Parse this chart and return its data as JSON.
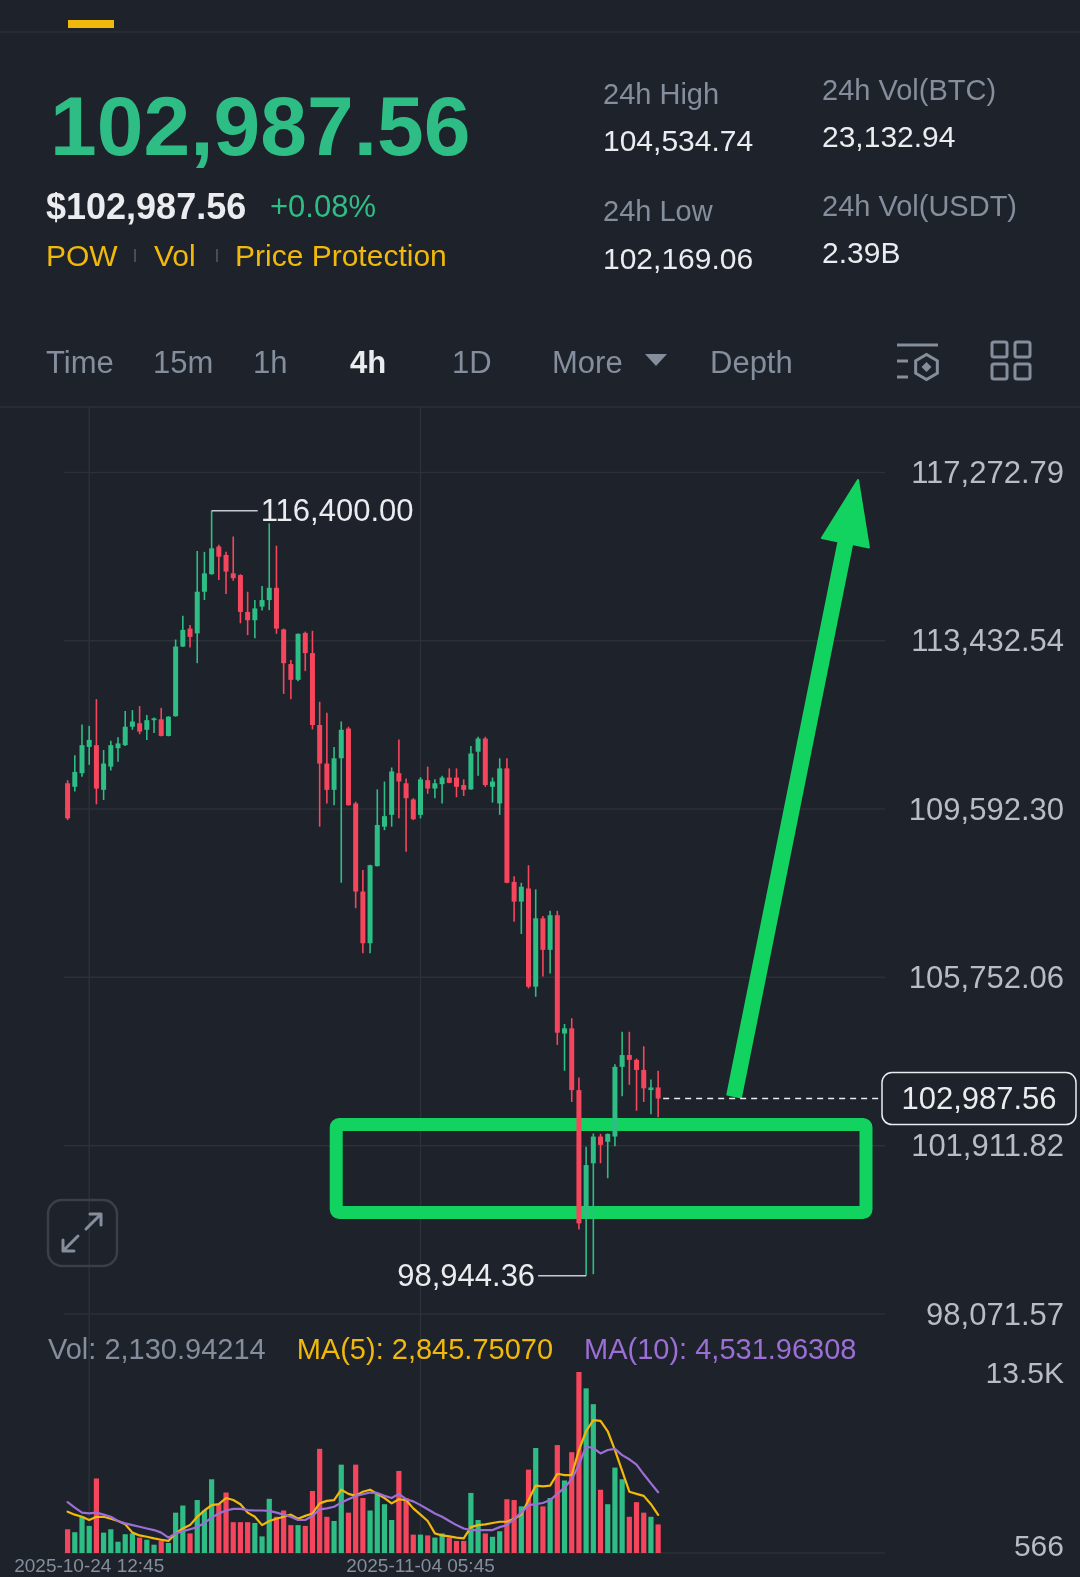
{
  "chart_data": [
    {
      "type": "other",
      "title": "102,987.56",
      "annotations": [
        "$102,987.56",
        "+0.08%",
        "POW",
        "Vol",
        "Price Protection",
        "24h High",
        "104,534.74",
        "24h Low",
        "102,169.06",
        "24h Vol(BTC)",
        "23,132.94",
        "24h Vol(USDT)",
        "2.39B",
        "Time",
        "15m",
        "1h",
        "4h",
        "1D",
        "More",
        "Depth"
      ]
    },
    {
      "type": "candlestick",
      "categories": [
        null,
        null,
        null,
        null,
        null,
        null,
        null,
        null,
        null,
        null,
        null,
        null,
        null,
        null,
        null,
        null,
        null,
        null,
        null,
        null,
        null,
        null,
        null,
        null,
        null,
        null,
        null,
        null,
        null,
        null,
        null,
        null,
        null,
        null,
        null,
        null,
        null,
        null,
        null,
        null,
        null,
        null,
        null,
        null,
        null,
        null,
        null,
        null,
        null,
        null,
        null,
        null,
        null,
        null,
        null,
        null,
        null,
        null,
        null,
        null,
        null,
        null,
        null,
        null,
        null,
        null,
        null,
        null,
        null,
        null,
        null,
        null,
        null,
        null,
        null,
        null,
        null,
        null,
        null,
        null,
        null,
        null,
        null,
        null,
        null,
        null,
        null,
        null,
        null,
        null,
        null,
        null,
        null,
        null,
        null,
        null,
        null,
        null,
        null,
        null,
        null,
        null,
        null,
        null,
        null,
        null,
        null,
        null,
        null,
        null,
        null,
        null,
        null,
        null
      ],
      "ohlc": [
        [
          110180,
          110250,
          109340,
          109380
        ],
        [
          110100,
          110820,
          109990,
          110440
        ],
        [
          110410,
          111520,
          110330,
          111050
        ],
        [
          111010,
          111490,
          110600,
          111170
        ],
        [
          111050,
          112100,
          109700,
          110060
        ],
        [
          110030,
          110940,
          109800,
          110630
        ],
        [
          110560,
          111150,
          110470,
          111050
        ],
        [
          110980,
          111230,
          110670,
          111090
        ],
        [
          111050,
          111830,
          111030,
          111470
        ],
        [
          111470,
          111850,
          111400,
          111590
        ],
        [
          111550,
          111940,
          111300,
          111360
        ],
        [
          111400,
          111740,
          111170,
          111620
        ],
        [
          111620,
          111680,
          111330,
          111660
        ],
        [
          111640,
          111900,
          111250,
          111260
        ],
        [
          111260,
          111710,
          111250,
          111700
        ],
        [
          111710,
          113460,
          111700,
          113300
        ],
        [
          113300,
          114000,
          113290,
          113680
        ],
        [
          113710,
          113790,
          113280,
          113520
        ],
        [
          113600,
          115480,
          112920,
          114550
        ],
        [
          114550,
          115460,
          114360,
          114970
        ],
        [
          114950,
          116400,
          114940,
          115540
        ],
        [
          115580,
          115620,
          114820,
          115350
        ],
        [
          115390,
          115460,
          114500,
          115010
        ],
        [
          114970,
          115810,
          114800,
          114860
        ],
        [
          114930,
          114950,
          113830,
          114090
        ],
        [
          114090,
          114550,
          113560,
          113900
        ],
        [
          113900,
          114360,
          113490,
          114170
        ],
        [
          114210,
          114680,
          114120,
          114360
        ],
        [
          114360,
          116110,
          114130,
          114640
        ],
        [
          114640,
          115600,
          113590,
          113710
        ],
        [
          113690,
          113710,
          112220,
          112920
        ],
        [
          112900,
          112990,
          112100,
          112540
        ],
        [
          112540,
          113600,
          112510,
          113590
        ],
        [
          113610,
          113640,
          112740,
          113150
        ],
        [
          113150,
          113660,
          111410,
          111510
        ],
        [
          111510,
          112040,
          109190,
          110630
        ],
        [
          110630,
          111790,
          109720,
          110030
        ],
        [
          110030,
          111010,
          109680,
          110750
        ],
        [
          110750,
          111590,
          107910,
          111400
        ],
        [
          111430,
          111470,
          109670,
          109680
        ],
        [
          109720,
          109760,
          107330,
          107710
        ],
        [
          107710,
          108200,
          106300,
          106530
        ],
        [
          106530,
          108320,
          106300,
          108310
        ],
        [
          108290,
          110040,
          108280,
          109230
        ],
        [
          109190,
          110220,
          109110,
          109430
        ],
        [
          109460,
          110540,
          109190,
          110450
        ],
        [
          110410,
          111180,
          109380,
          110220
        ],
        [
          110180,
          110290,
          108620,
          109840
        ],
        [
          109810,
          109840,
          109340,
          109360
        ],
        [
          109460,
          110320,
          109380,
          110270
        ],
        [
          110250,
          110560,
          109940,
          110060
        ],
        [
          110060,
          110270,
          109840,
          110180
        ],
        [
          110160,
          110350,
          109720,
          110310
        ],
        [
          110310,
          110520,
          110180,
          110190
        ],
        [
          110310,
          110520,
          109860,
          110100
        ],
        [
          110140,
          110270,
          109890,
          110030
        ],
        [
          110040,
          111030,
          110030,
          110860
        ],
        [
          110900,
          111240,
          110350,
          111200
        ],
        [
          111200,
          111240,
          110100,
          110140
        ],
        [
          110100,
          110310,
          109740,
          110220
        ],
        [
          109720,
          110750,
          109460,
          110520
        ],
        [
          110520,
          110750,
          107900,
          107910
        ],
        [
          107930,
          108060,
          107020,
          107480
        ],
        [
          107480,
          107910,
          106740,
          107820
        ],
        [
          107780,
          108310,
          105500,
          105540
        ],
        [
          105540,
          107760,
          105310,
          107100
        ],
        [
          107100,
          107150,
          105770,
          106380
        ],
        [
          106380,
          107270,
          105840,
          107170
        ],
        [
          107170,
          107270,
          104210,
          104490
        ],
        [
          104470,
          104690,
          103620,
          104590
        ],
        [
          104590,
          104820,
          102910,
          103180
        ],
        [
          103180,
          103470,
          100000,
          100140
        ],
        [
          100300,
          101890,
          98944.36,
          101470
        ],
        [
          101510,
          102190,
          98980,
          102120
        ],
        [
          102120,
          102180,
          101510,
          101930
        ],
        [
          102000,
          102190,
          101170,
          102180
        ],
        [
          102120,
          103770,
          101900,
          103710
        ],
        [
          103710,
          104510,
          103040,
          103980
        ],
        [
          103980,
          104510,
          103300,
          103870
        ],
        [
          103870,
          103900,
          102710,
          103640
        ],
        [
          103640,
          104180,
          102910,
          103220
        ],
        [
          103180,
          103420,
          102630,
          103240
        ],
        [
          103240,
          103620,
          102560,
          102987.56
        ],
        null,
        null,
        null,
        null,
        null,
        null,
        null,
        null,
        null,
        null,
        null,
        null,
        null,
        null,
        null,
        null,
        null,
        null,
        null,
        null,
        null,
        null,
        null,
        null,
        null,
        null,
        null,
        null,
        null,
        null,
        null
      ],
      "colors": [
        "#f6465d",
        "#2ebd85",
        "#2ebd85",
        "#2ebd85",
        "#f6465d",
        "#2ebd85",
        "#2ebd85",
        "#2ebd85",
        "#2ebd85",
        "#2ebd85",
        "#f6465d",
        "#2ebd85",
        "#2ebd85",
        "#f6465d",
        "#2ebd85",
        "#2ebd85",
        "#2ebd85",
        "#f6465d",
        "#2ebd85",
        "#2ebd85",
        "#2ebd85",
        "#f6465d",
        "#f6465d",
        "#f6465d",
        "#f6465d",
        "#f6465d",
        "#2ebd85",
        "#2ebd85",
        "#2ebd85",
        "#f6465d",
        "#f6465d",
        "#f6465d",
        "#2ebd85",
        "#f6465d",
        "#f6465d",
        "#f6465d",
        "#f6465d",
        "#2ebd85",
        "#2ebd85",
        "#f6465d",
        "#f6465d",
        "#f6465d",
        "#2ebd85",
        "#2ebd85",
        "#2ebd85",
        "#2ebd85",
        "#f6465d",
        "#f6465d",
        "#f6465d",
        "#2ebd85",
        "#f6465d",
        "#2ebd85",
        "#2ebd85",
        "#f6465d",
        "#f6465d",
        "#f6465d",
        "#2ebd85",
        "#2ebd85",
        "#f6465d",
        "#2ebd85",
        "#2ebd85",
        "#f6465d",
        "#f6465d",
        "#2ebd85",
        "#f6465d",
        "#2ebd85",
        "#f6465d",
        "#2ebd85",
        "#f6465d",
        "#2ebd85",
        "#f6465d",
        "#f6465d",
        "#2ebd85",
        "#2ebd85",
        "#f6465d",
        "#2ebd85",
        "#2ebd85",
        "#2ebd85",
        "#f6465d",
        "#f6465d",
        "#f6465d",
        "#2ebd85",
        "#f6465d",
        null,
        null,
        null,
        null,
        null,
        null,
        null,
        null,
        null,
        null,
        null,
        null,
        null,
        null,
        null,
        null,
        null,
        null,
        null,
        null,
        null,
        null,
        null,
        null,
        null,
        null,
        null,
        null,
        null,
        null,
        null
      ],
      "ylim": [
        98071.57,
        117272.79
      ],
      "yticks": [
        {
          "value": 98071.57,
          "label": "98,071.57"
        },
        {
          "value": 101911.82,
          "label": "101,911.82"
        },
        {
          "value": 105752.06,
          "label": "105,752.06"
        },
        {
          "value": 109592.3,
          "label": "109,592.30"
        },
        {
          "value": 113432.54,
          "label": "113,432.54"
        },
        {
          "value": 117272.79,
          "label": "117,272.79"
        }
      ],
      "grid": "y",
      "tick_labels": "y",
      "ref_lines": [
        {
          "axis": "y",
          "value": 102987.56,
          "label": "102,987.56",
          "line_style": "dashed",
          "color": "#eaecef"
        }
      ],
      "annotations": [
        "116,400.00",
        "98,944.36"
      ]
    },
    {
      "type": "bar",
      "categories": [
        null,
        null,
        null,
        "2025-10-24 12:45",
        null,
        null,
        null,
        null,
        null,
        null,
        null,
        null,
        null,
        null,
        null,
        null,
        null,
        null,
        null,
        null,
        null,
        null,
        null,
        null,
        null,
        null,
        null,
        null,
        null,
        null,
        null,
        null,
        null,
        null,
        null,
        null,
        null,
        null,
        null,
        null,
        null,
        null,
        null,
        null,
        null,
        null,
        null,
        null,
        null,
        "2025-11-04 05:45",
        null,
        null,
        null,
        null,
        null,
        null,
        null,
        null,
        null,
        null,
        null,
        null,
        null,
        null,
        null,
        null,
        null,
        null,
        null,
        null,
        null,
        null,
        null,
        null,
        null,
        null,
        null,
        null,
        null,
        null,
        null,
        null,
        null,
        null,
        null,
        null,
        null,
        null,
        null,
        null,
        null,
        null,
        null,
        null,
        null,
        null,
        null,
        null,
        null,
        null,
        null,
        null,
        null,
        null,
        null,
        null,
        null,
        null,
        null,
        null,
        null,
        null,
        null,
        null
      ],
      "series": [
        {
          "values": [
            1770,
            1550,
            2700,
            2020,
            5560,
            1520,
            1770,
            840,
            1400,
            1460,
            1150,
            990,
            620,
            930,
            750,
            3010,
            3540,
            1460,
            3950,
            3170,
            5500,
            3640,
            4510,
            2300,
            2300,
            2300,
            2240,
            1240,
            4040,
            2700,
            3170,
            2080,
            2080,
            2020,
            4630,
            7770,
            2700,
            2390,
            6590,
            3010,
            6590,
            4100,
            3170,
            4410,
            3640,
            2460,
            6120,
            4100,
            1370,
            1370,
            1310,
            1150,
            1460,
            1150,
            900,
            900,
            4480,
            2460,
            1460,
            1210,
            1620,
            4010,
            3950,
            3480,
            6220,
            7830,
            3480,
            4100,
            8050,
            5410,
            7520,
            13500,
            12280,
            11100,
            4720,
            3640,
            6370,
            5500,
            2700,
            3790,
            3010,
            2700,
            2130.94214,
            null,
            null,
            null,
            null,
            null,
            null,
            null,
            null,
            null,
            null,
            null,
            null,
            null,
            null,
            null,
            null,
            null,
            null,
            null,
            null,
            null,
            null,
            null,
            null,
            null,
            null,
            null,
            null,
            null,
            null,
            null
          ],
          "colors": [
            "#f6465d",
            "#2ebd85",
            "#2ebd85",
            "#2ebd85",
            "#f6465d",
            "#2ebd85",
            "#2ebd85",
            "#2ebd85",
            "#2ebd85",
            "#2ebd85",
            "#f6465d",
            "#2ebd85",
            "#2ebd85",
            "#f6465d",
            "#2ebd85",
            "#2ebd85",
            "#2ebd85",
            "#f6465d",
            "#2ebd85",
            "#2ebd85",
            "#2ebd85",
            "#f6465d",
            "#f6465d",
            "#f6465d",
            "#f6465d",
            "#f6465d",
            "#2ebd85",
            "#2ebd85",
            "#2ebd85",
            "#f6465d",
            "#f6465d",
            "#f6465d",
            "#2ebd85",
            "#f6465d",
            "#f6465d",
            "#f6465d",
            "#f6465d",
            "#2ebd85",
            "#2ebd85",
            "#f6465d",
            "#f6465d",
            "#f6465d",
            "#2ebd85",
            "#2ebd85",
            "#2ebd85",
            "#2ebd85",
            "#f6465d",
            "#f6465d",
            "#f6465d",
            "#2ebd85",
            "#f6465d",
            "#2ebd85",
            "#2ebd85",
            "#f6465d",
            "#f6465d",
            "#f6465d",
            "#2ebd85",
            "#2ebd85",
            "#f6465d",
            "#2ebd85",
            "#2ebd85",
            "#f6465d",
            "#f6465d",
            "#2ebd85",
            "#f6465d",
            "#2ebd85",
            "#f6465d",
            "#2ebd85",
            "#f6465d",
            "#2ebd85",
            "#f6465d",
            "#f6465d",
            "#2ebd85",
            "#2ebd85",
            "#f6465d",
            "#2ebd85",
            "#2ebd85",
            "#2ebd85",
            "#f6465d",
            "#f6465d",
            "#f6465d",
            "#2ebd85",
            "#f6465d",
            null,
            null,
            null,
            null,
            null,
            null,
            null,
            null,
            null,
            null,
            null,
            null,
            null,
            null,
            null,
            null,
            null,
            null,
            null,
            null,
            null,
            null,
            null,
            null,
            null,
            null,
            null,
            null,
            null,
            null,
            null
          ]
        },
        {
          "name": "MA(5): 2,845.75070",
          "type": "line",
          "color": "#f0b90b",
          "values": [
            3080,
            2860,
            2700,
            2460,
            2700,
            2700,
            2550,
            2390,
            2140,
            1520,
            1310,
            1210,
            1090,
            990,
            900,
            1460,
            1830,
            2080,
            2700,
            3170,
            3570,
            3640,
            4100,
            3950,
            3640,
            3010,
            2700,
            2080,
            2390,
            2550,
            2700,
            2860,
            2550,
            2770,
            2950,
            3700,
            3890,
            3950,
            4720,
            4410,
            4260,
            4570,
            4720,
            4410,
            4100,
            3700,
            4010,
            3950,
            3330,
            2860,
            2390,
            1460,
            1310,
            1240,
            1150,
            1090,
            1930,
            2080,
            2140,
            2240,
            2330,
            2330,
            2550,
            2860,
            3950,
            5030,
            4970,
            5030,
            5910,
            5810,
            5810,
            7680,
            9080,
            9910,
            9850,
            9080,
            7680,
            6120,
            4570,
            4410,
            4260,
            3640,
            2845.7507,
            null,
            null,
            null,
            null,
            null,
            null,
            null,
            null,
            null,
            null,
            null,
            null,
            null,
            null,
            null,
            null,
            null,
            null,
            null,
            null,
            null,
            null,
            null,
            null,
            null,
            null,
            null,
            null,
            null,
            null,
            null
          ]
        },
        {
          "name": "MA(10): 4,531.96308",
          "type": "line",
          "color": "#9b6fd6",
          "values": [
            3790,
            3390,
            3010,
            2950,
            3010,
            2860,
            2700,
            2390,
            2210,
            2080,
            1960,
            1830,
            1710,
            1520,
            1150,
            1460,
            1620,
            1770,
            1930,
            2240,
            2640,
            2950,
            3170,
            3290,
            3290,
            3200,
            3170,
            3170,
            3140,
            3010,
            2860,
            2700,
            2460,
            2460,
            2770,
            3260,
            3330,
            3450,
            3760,
            4010,
            4260,
            4380,
            4510,
            4480,
            4260,
            4100,
            4410,
            4010,
            3850,
            3570,
            3260,
            2950,
            2700,
            2390,
            2080,
            1830,
            1710,
            1710,
            1710,
            1710,
            1930,
            2080,
            2550,
            3010,
            3570,
            3640,
            3730,
            3950,
            4410,
            4880,
            5500,
            6590,
            7930,
            7830,
            7430,
            7680,
            7770,
            7300,
            6990,
            6590,
            5870,
            5190,
            4531.96308,
            null,
            null,
            null,
            null,
            null,
            null,
            null,
            null,
            null,
            null,
            null,
            null,
            null,
            null,
            null,
            null,
            null,
            null,
            null,
            null,
            null,
            null,
            null,
            null,
            null,
            null,
            null,
            null,
            null,
            null,
            null
          ]
        }
      ],
      "ylim": [
        0,
        13500
      ],
      "yticks": [
        {
          "value": 566,
          "label": "566"
        },
        {
          "value": 13500,
          "label": "13.5K"
        }
      ],
      "grid": "x",
      "annotations": [
        "Vol: 2,130.94214"
      ]
    }
  ]
}
